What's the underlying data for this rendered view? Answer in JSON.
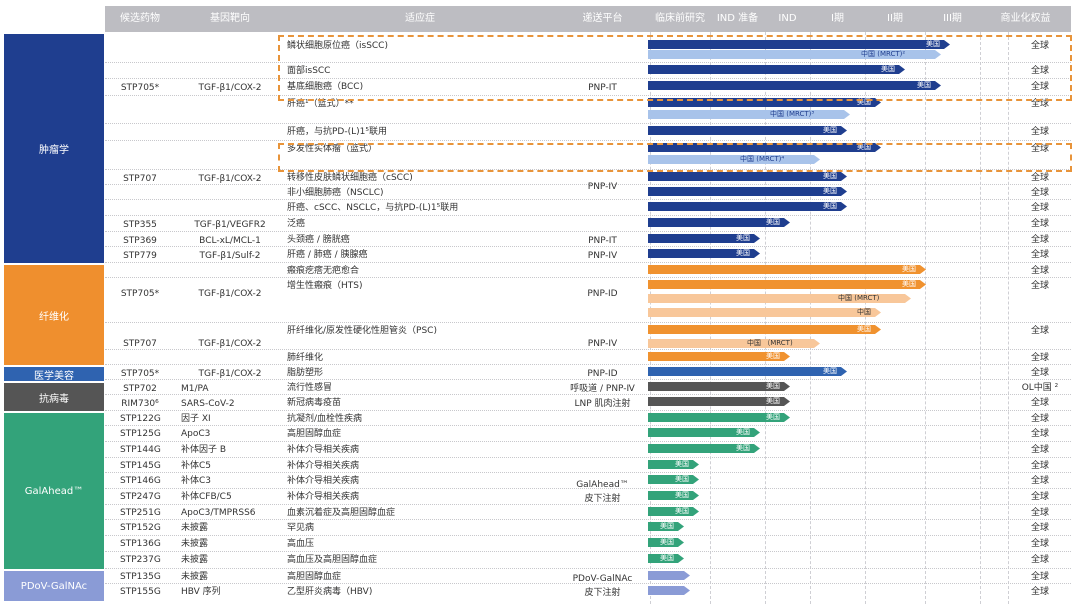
{
  "headers": {
    "candidate": "候选药物",
    "target": "基因靶向",
    "indication": "适应症",
    "platform": "递送平台",
    "preclinical": "临床前研究",
    "ind_prep": "IND 准备",
    "ind": "IND",
    "phase1": "I期",
    "phase2": "II期",
    "phase3": "III期",
    "rights": "商业化权益"
  },
  "categories": [
    {
      "label": "肿瘤学",
      "color": "#1f3e8f"
    },
    {
      "label": "纤维化",
      "color": "#ef8f2e"
    },
    {
      "label": "医学美容",
      "color": "#2f63b0"
    },
    {
      "label": "抗病毒",
      "color": "#555555"
    },
    {
      "label": "GalAhead™",
      "color": "#33a37a"
    },
    {
      "label": "PDoV-GalNAc",
      "color": "#8a9bd6"
    }
  ],
  "groups": [
    {
      "candidate": "STP705*",
      "target": "TGF-β1/COX-2",
      "platform": "PNP-IT"
    },
    {
      "candidate": "STP707",
      "target": "TGF-β1/COX-2",
      "platform": "PNP-IV"
    },
    {
      "candidate": "STP355",
      "target": "TGF-β1/VEGFR2",
      "platform": ""
    },
    {
      "candidate": "STP369",
      "target": "BCL-xL/MCL-1",
      "platform": "PNP-IT"
    },
    {
      "candidate": "STP779",
      "target": "TGF-β1/Sulf-2",
      "platform": "PNP-IV"
    },
    {
      "candidate": "STP705*",
      "target": "TGF-β1/COX-2",
      "platform": "PNP-ID"
    },
    {
      "candidate": "STP707",
      "target": "TGF-β1/COX-2",
      "platform": "PNP-IV"
    },
    {
      "candidate": "STP705*",
      "target": "TGF-β1/COX-2",
      "platform": "PNP-ID"
    },
    {
      "candidate": "STP702",
      "target": "M1/PA",
      "platform": "呼吸道 / PNP-Ⅳ"
    },
    {
      "candidate": "RIM730⁶",
      "target": "SARS-CoV-2",
      "platform": "LNP 肌肉注射"
    },
    {
      "candidate": "",
      "target": "",
      "platform": "GalAhead™\n皮下注射"
    },
    {
      "candidate": "",
      "target": "",
      "platform": "PDoV-GalNAc\n皮下注射"
    }
  ],
  "ga_rows": [
    {
      "candidate": "STP122G",
      "target": "因子 XI"
    },
    {
      "candidate": "STP125G",
      "target": "ApoC3"
    },
    {
      "candidate": "STP144G",
      "target": "补体因子 B"
    },
    {
      "candidate": "STP145G",
      "target": "补体C5"
    },
    {
      "candidate": "STP146G",
      "target": "补体C3"
    },
    {
      "candidate": "STP247G",
      "target": "补体CFB/C5"
    },
    {
      "candidate": "STP251G",
      "target": "ApoC3/TMPRSS6"
    },
    {
      "candidate": "STP152G",
      "target": "未披露"
    },
    {
      "candidate": "STP136G",
      "target": "未披露"
    },
    {
      "candidate": "STP237G",
      "target": "未披露"
    },
    {
      "candidate": "STP135G",
      "target": "未披露"
    },
    {
      "candidate": "STP155G",
      "target": "HBV 序列"
    }
  ],
  "rows": [
    {
      "indication": "鳞状细胞原位癌（isSCC)",
      "rights": "全球",
      "bars": [
        {
          "frac": 1.0,
          "label": "美国",
          "color": "#1f3e8f",
          "tc": "#fff"
        },
        {
          "frac": 0.97,
          "label": "中国 (MRCT)²",
          "color": "#a8c3ea",
          "tc": "#1f3e8f"
        }
      ]
    },
    {
      "indication": "面部isSCC",
      "rights": "全球",
      "bars": [
        {
          "frac": 0.85,
          "label": "美国",
          "color": "#1f3e8f",
          "tc": "#fff"
        }
      ]
    },
    {
      "indication": "基底细胞癌（BCC)",
      "rights": "全球",
      "bars": [
        {
          "frac": 0.97,
          "label": "美国",
          "color": "#1f3e8f",
          "tc": "#fff"
        }
      ]
    },
    {
      "indication": "肝癌¹（篮式）**",
      "rights": "全球",
      "bars": [
        {
          "frac": 0.77,
          "label": "美国",
          "color": "#1f3e8f",
          "tc": "#fff"
        },
        {
          "frac": 0.67,
          "label": "中国 (MRCT)³",
          "color": "#a8c3ea",
          "tc": "#1f3e8f"
        }
      ]
    },
    {
      "indication": "肝癌，与抗PD-(L)1⁵联用",
      "rights": "全球",
      "bars": [
        {
          "frac": 0.66,
          "label": "美国",
          "color": "#1f3e8f",
          "tc": "#fff"
        }
      ]
    },
    {
      "indication": "多发性实体瘤（篮式）",
      "rights": "全球",
      "bars": [
        {
          "frac": 0.77,
          "label": "美国",
          "color": "#1f3e8f",
          "tc": "#fff"
        },
        {
          "frac": 0.57,
          "label": "中国 (MRCT)⁴",
          "color": "#a8c3ea",
          "tc": "#1f3e8f"
        }
      ]
    },
    {
      "indication": "转移性皮肤鳞状细胞癌（cSCC)",
      "rights": "全球",
      "bars": [
        {
          "frac": 0.66,
          "label": "美国",
          "color": "#1f3e8f",
          "tc": "#fff"
        }
      ]
    },
    {
      "indication": "非小细胞肺癌（NSCLC)",
      "rights": "全球",
      "bars": [
        {
          "frac": 0.66,
          "label": "美国",
          "color": "#1f3e8f",
          "tc": "#fff"
        }
      ]
    },
    {
      "indication": "肝癌、cSCC、NSCLC，与抗PD-(L)1⁵联用",
      "rights": "全球",
      "bars": [
        {
          "frac": 0.66,
          "label": "美国",
          "color": "#1f3e8f",
          "tc": "#fff"
        }
      ]
    },
    {
      "indication": "泛癌",
      "rights": "全球",
      "bars": [
        {
          "frac": 0.47,
          "label": "美国",
          "color": "#1f3e8f",
          "tc": "#fff"
        }
      ]
    },
    {
      "indication": "头颈癌 / 膀胱癌",
      "rights": "全球",
      "bars": [
        {
          "frac": 0.37,
          "label": "美国",
          "color": "#1f3e8f",
          "tc": "#fff"
        }
      ]
    },
    {
      "indication": "肝癌 / 肺癌 / 胰腺癌",
      "rights": "全球",
      "bars": [
        {
          "frac": 0.37,
          "label": "美国",
          "color": "#1f3e8f",
          "tc": "#fff"
        }
      ]
    },
    {
      "indication": "瘢痕疙瘩无疤愈合",
      "rights": "全球",
      "bars": [
        {
          "frac": 0.92,
          "label": "美国",
          "color": "#f0922f",
          "tc": "#fff"
        }
      ]
    },
    {
      "indication": "增生性瘢痕（HTS)",
      "rights": "全球",
      "bars": [
        {
          "frac": 0.92,
          "label": "美国",
          "color": "#f0922f",
          "tc": "#fff"
        },
        {
          "frac": 0.87,
          "label": "中国 (MRCT)",
          "color": "#f8c79a",
          "tc": "#333"
        },
        {
          "frac": 0.77,
          "label": "中国",
          "color": "#f8c79a",
          "tc": "#333"
        }
      ]
    },
    {
      "indication": "肝纤维化/原发性硬化性胆管炎（PSC)",
      "rights": "全球",
      "bars": [
        {
          "frac": 0.77,
          "label": "美国",
          "color": "#f0922f",
          "tc": "#fff"
        },
        {
          "frac": 0.57,
          "label": "中国 （MRCT)",
          "color": "#f8c79a",
          "tc": "#333"
        }
      ]
    },
    {
      "indication": "肺纤维化",
      "rights": "全球",
      "bars": [
        {
          "frac": 0.47,
          "label": "美国",
          "color": "#f0922f",
          "tc": "#fff"
        }
      ]
    },
    {
      "indication": "脂肪塑形",
      "rights": "全球",
      "bars": [
        {
          "frac": 0.66,
          "label": "美国",
          "color": "#2f63b0",
          "tc": "#fff"
        }
      ]
    },
    {
      "indication": "流行性感冒",
      "rights": "OL中国 ²",
      "bars": [
        {
          "frac": 0.47,
          "label": "美国",
          "color": "#555555",
          "tc": "#fff"
        }
      ]
    },
    {
      "indication": "新冠病毒疫苗",
      "rights": "全球",
      "bars": [
        {
          "frac": 0.47,
          "label": "美国",
          "color": "#555555",
          "tc": "#fff"
        }
      ]
    },
    {
      "indication": "抗凝剂/血栓性疾病",
      "rights": "全球",
      "bars": [
        {
          "frac": 0.47,
          "label": "美国",
          "color": "#33a37a",
          "tc": "#fff"
        }
      ]
    },
    {
      "indication": "高胆固醇血症",
      "rights": "全球",
      "bars": [
        {
          "frac": 0.37,
          "label": "美国",
          "color": "#33a37a",
          "tc": "#fff"
        }
      ]
    },
    {
      "indication": "补体介导相关疾病",
      "rights": "全球",
      "bars": [
        {
          "frac": 0.37,
          "label": "美国",
          "color": "#33a37a",
          "tc": "#fff"
        }
      ]
    },
    {
      "indication": "补体介导相关疾病",
      "rights": "全球",
      "bars": [
        {
          "frac": 0.17,
          "label": "美国",
          "color": "#33a37a",
          "tc": "#fff"
        }
      ]
    },
    {
      "indication": "补体介导相关疾病",
      "rights": "全球",
      "bars": [
        {
          "frac": 0.17,
          "label": "美国",
          "color": "#33a37a",
          "tc": "#fff"
        }
      ]
    },
    {
      "indication": "补体介导相关疾病",
      "rights": "全球",
      "bars": [
        {
          "frac": 0.17,
          "label": "美国",
          "color": "#33a37a",
          "tc": "#fff"
        }
      ]
    },
    {
      "indication": "血素沉着症及高胆固醇血症",
      "rights": "全球",
      "bars": [
        {
          "frac": 0.17,
          "label": "美国",
          "color": "#33a37a",
          "tc": "#fff"
        }
      ]
    },
    {
      "indication": "罕见病",
      "rights": "全球",
      "bars": [
        {
          "frac": 0.12,
          "label": "美国",
          "color": "#33a37a",
          "tc": "#fff"
        }
      ]
    },
    {
      "indication": "高血压",
      "rights": "全球",
      "bars": [
        {
          "frac": 0.12,
          "label": "美国",
          "color": "#33a37a",
          "tc": "#fff"
        }
      ]
    },
    {
      "indication": "高血压及高胆固醇血症",
      "rights": "全球",
      "bars": [
        {
          "frac": 0.12,
          "label": "美国",
          "color": "#33a37a",
          "tc": "#fff"
        }
      ]
    },
    {
      "indication": "高胆固醇血症",
      "rights": "全球",
      "bars": [
        {
          "frac": 0.14,
          "label": "",
          "color": "#8a9bd6",
          "tc": "#fff"
        }
      ]
    },
    {
      "indication": "乙型肝炎病毒（HBV)",
      "rights": "全球",
      "bars": [
        {
          "frac": 0.14,
          "label": "",
          "color": "#8a9bd6",
          "tc": "#fff"
        }
      ]
    }
  ]
}
